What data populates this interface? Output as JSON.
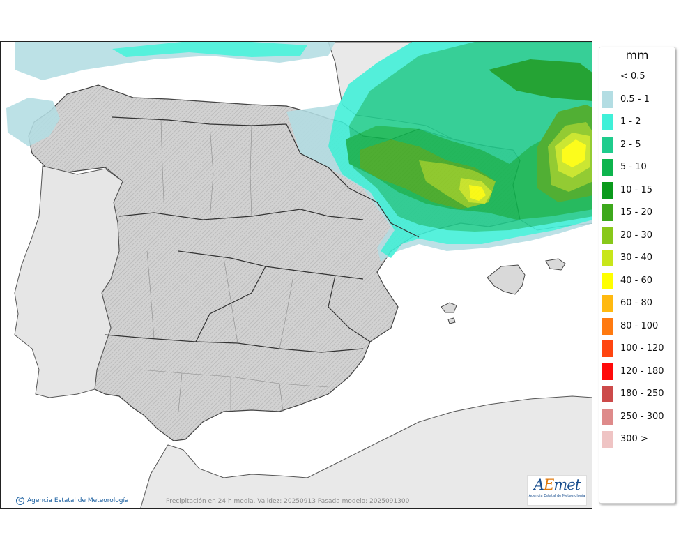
{
  "legend": {
    "title": "mm",
    "items": [
      {
        "label": "< 0.5",
        "color": "#ffffff"
      },
      {
        "label": "0.5 - 1",
        "color": "#b3dde3"
      },
      {
        "label": "1 - 2",
        "color": "#3ff0d8"
      },
      {
        "label": "2 - 5",
        "color": "#1fcc8c"
      },
      {
        "label": "5 - 10",
        "color": "#0db44d"
      },
      {
        "label": "10 - 15",
        "color": "#0a9a1c"
      },
      {
        "label": "15 - 20",
        "color": "#3da81c"
      },
      {
        "label": "20 - 30",
        "color": "#88c81a"
      },
      {
        "label": "30 - 40",
        "color": "#c8e61a"
      },
      {
        "label": "40 - 60",
        "color": "#ffff00"
      },
      {
        "label": "60 - 80",
        "color": "#ffb910"
      },
      {
        "label": "80 - 100",
        "color": "#ff7a10"
      },
      {
        "label": "100 - 120",
        "color": "#ff4510"
      },
      {
        "label": "120 - 180",
        "color": "#ff0a0a"
      },
      {
        "label": "180 - 250",
        "color": "#cc4a4a"
      },
      {
        "label": "250 - 300",
        "color": "#de8a8a"
      },
      {
        "label": "300 >",
        "color": "#efc4c4"
      }
    ]
  },
  "footer": {
    "credit": "Agencia Estatal de Meteorología",
    "caption": "Precipitación en 24 h media. Validez: 20250913 Pasada modelo: 2025091300"
  },
  "logo": {
    "word_a": "A",
    "word_e": "E",
    "word_rest": "met",
    "subtitle": "Agencia Estatal de Meteorología"
  }
}
